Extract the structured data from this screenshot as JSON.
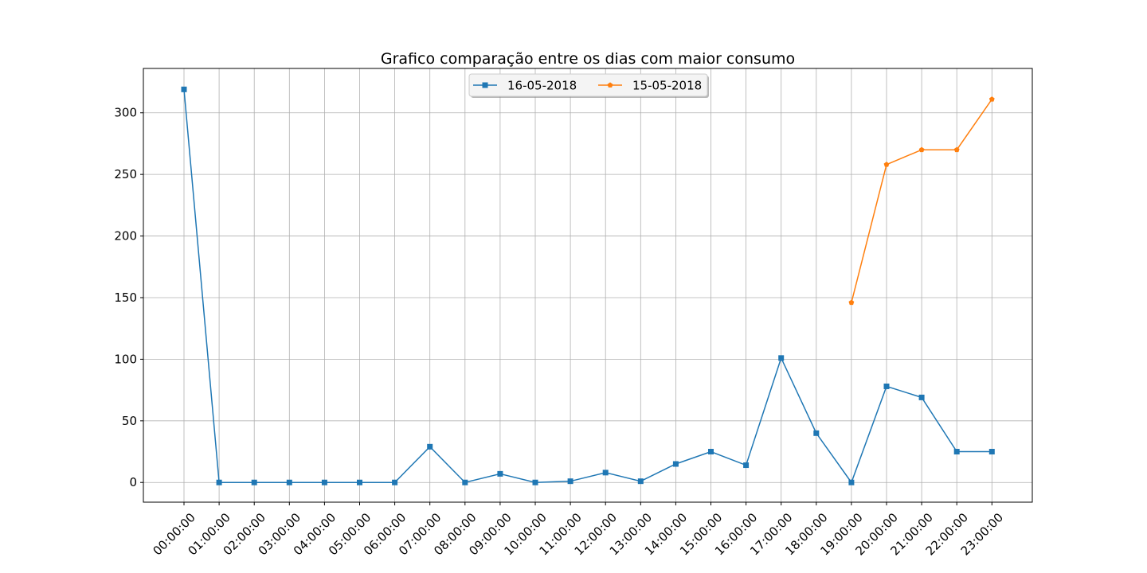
{
  "chart_data": {
    "type": "line",
    "title": "Grafico comparação entre os dias com maior consumo",
    "xlabel": "",
    "ylabel": "",
    "categories": [
      "00:00:00",
      "01:00:00",
      "02:00:00",
      "03:00:00",
      "04:00:00",
      "05:00:00",
      "06:00:00",
      "07:00:00",
      "08:00:00",
      "09:00:00",
      "10:00:00",
      "11:00:00",
      "12:00:00",
      "13:00:00",
      "14:00:00",
      "15:00:00",
      "16:00:00",
      "17:00:00",
      "18:00:00",
      "19:00:00",
      "20:00:00",
      "21:00:00",
      "22:00:00",
      "23:00:00"
    ],
    "y_ticks": [
      "0",
      "50",
      "100",
      "150",
      "200",
      "250",
      "300"
    ],
    "ylim": [
      -16,
      336
    ],
    "grid": true,
    "legend_position": "top-center",
    "series": [
      {
        "name": "16-05-2018",
        "color": "#1f77b4",
        "marker": "square",
        "x": [
          "00:00:00",
          "01:00:00",
          "02:00:00",
          "03:00:00",
          "04:00:00",
          "05:00:00",
          "06:00:00",
          "07:00:00",
          "08:00:00",
          "09:00:00",
          "10:00:00",
          "11:00:00",
          "12:00:00",
          "13:00:00",
          "14:00:00",
          "15:00:00",
          "16:00:00",
          "17:00:00",
          "18:00:00",
          "19:00:00",
          "20:00:00",
          "21:00:00",
          "22:00:00",
          "23:00:00"
        ],
        "values": [
          319,
          0,
          0,
          0,
          0,
          0,
          0,
          29,
          0,
          7,
          0,
          1,
          8,
          1,
          15,
          25,
          14,
          101,
          40,
          0,
          78,
          69,
          25,
          25
        ]
      },
      {
        "name": "15-05-2018",
        "color": "#ff7f0e",
        "marker": "pentagon",
        "x": [
          "19:00:00",
          "20:00:00",
          "21:00:00",
          "22:00:00",
          "23:00:00"
        ],
        "values": [
          146,
          258,
          270,
          270,
          311
        ]
      }
    ]
  }
}
